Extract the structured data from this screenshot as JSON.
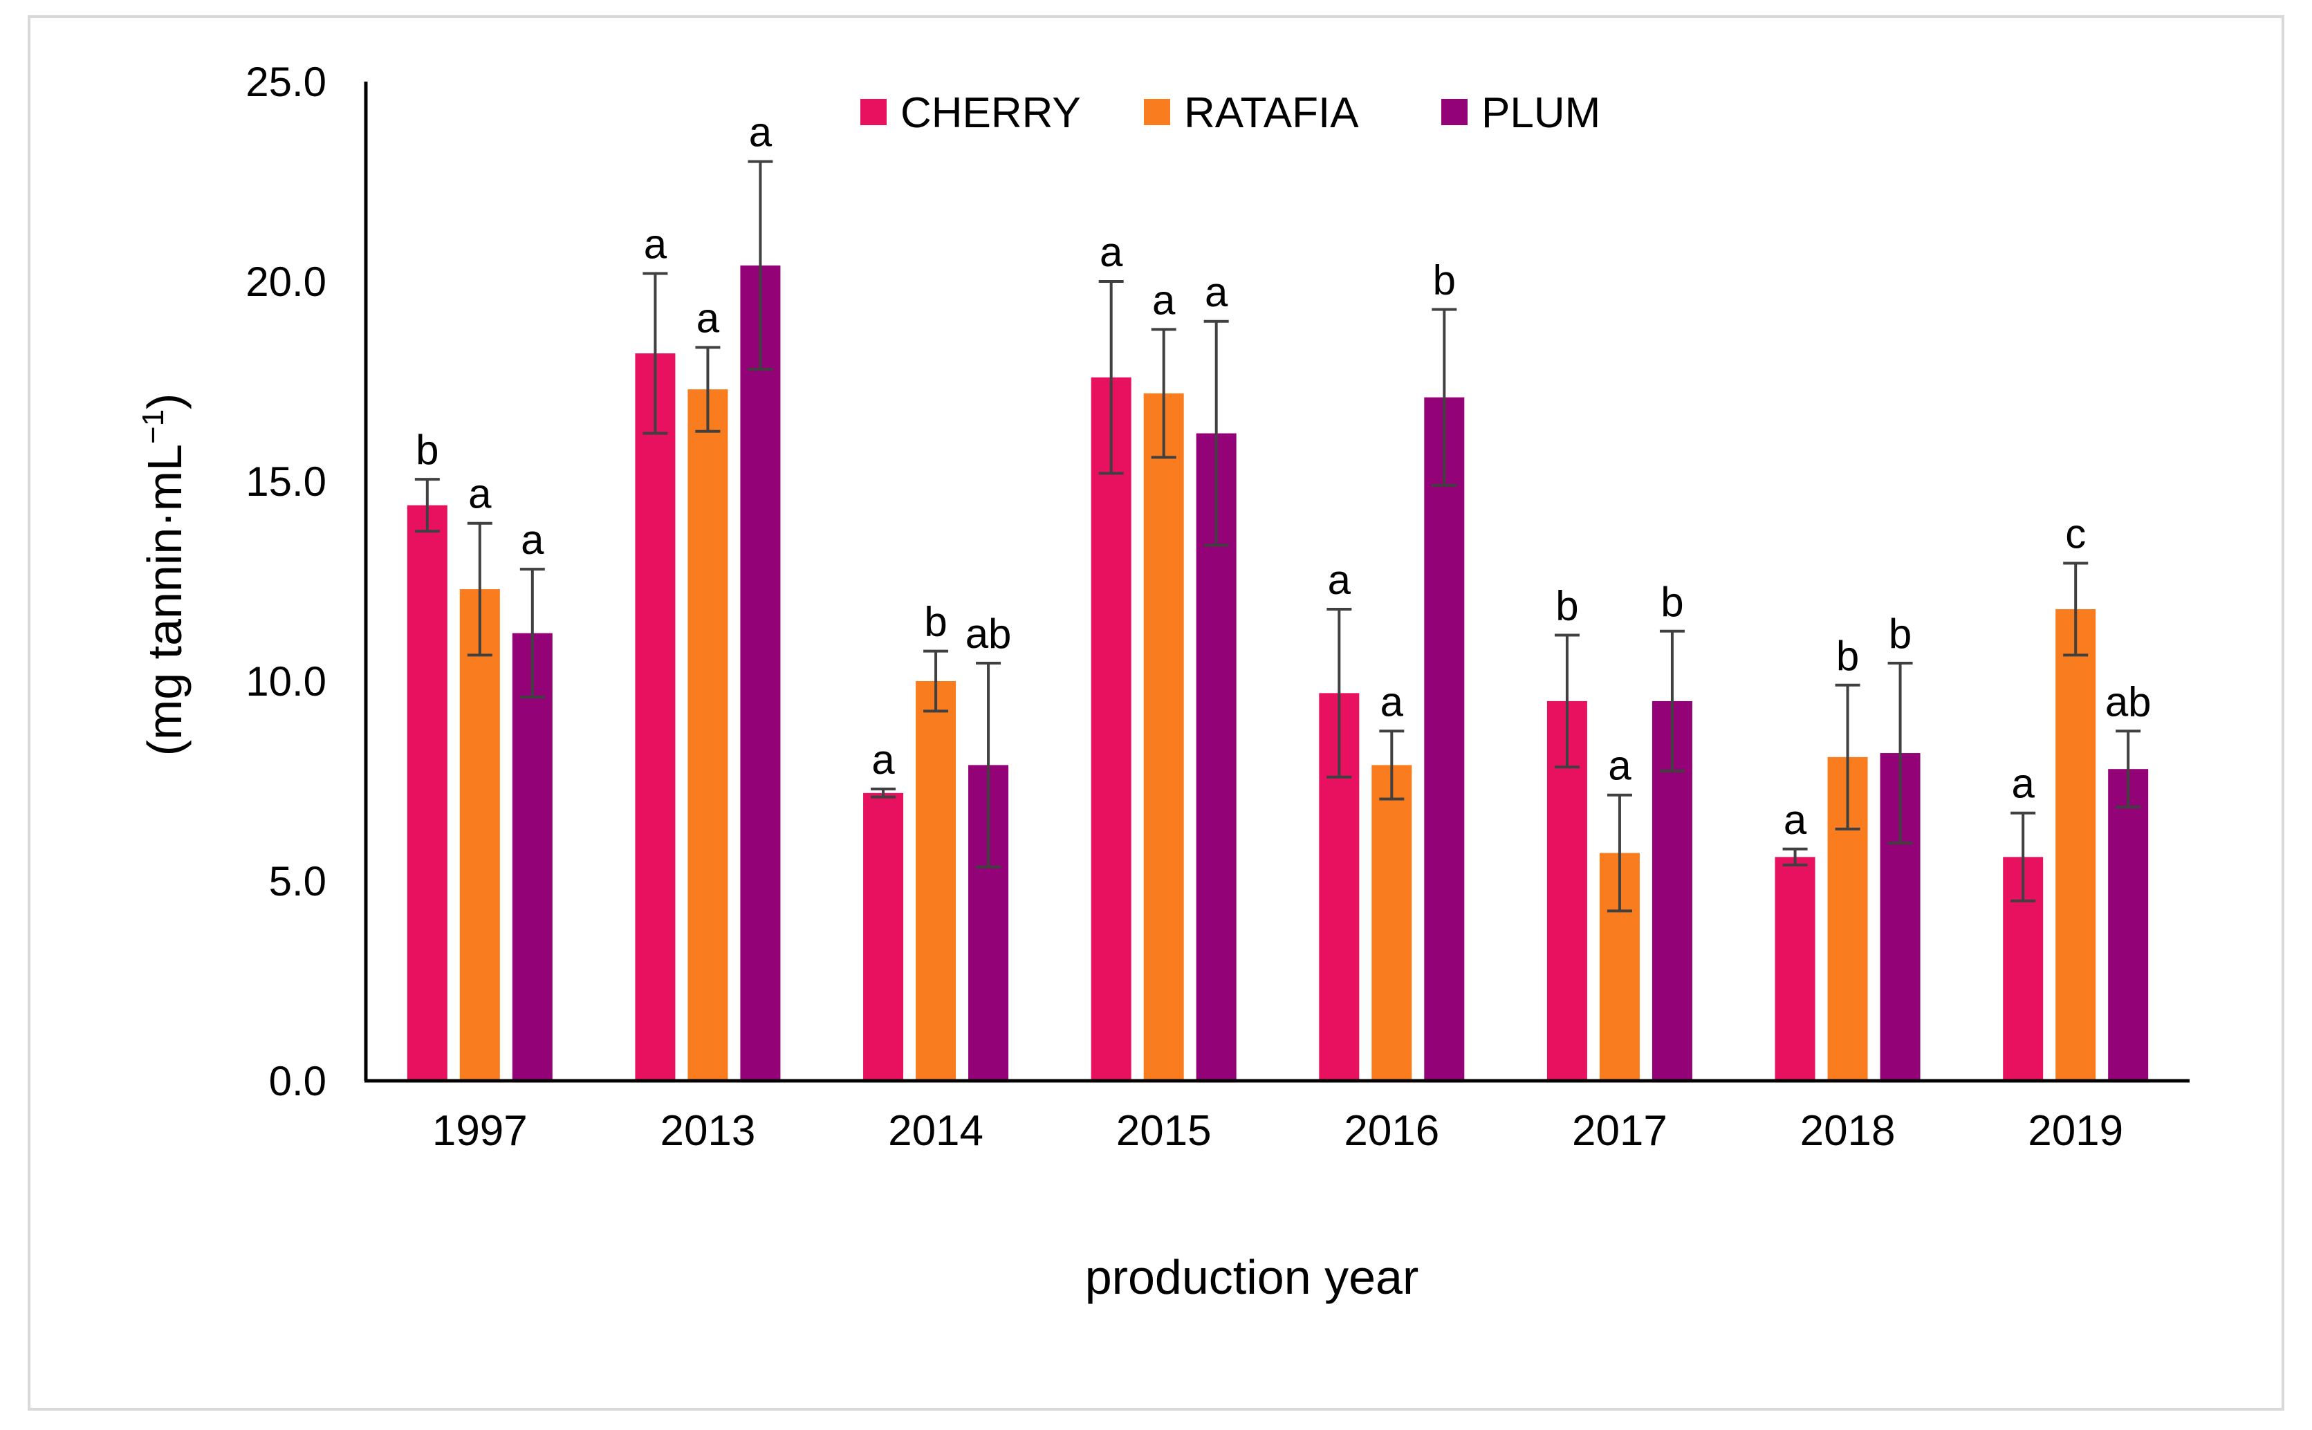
{
  "chart_data": {
    "type": "bar",
    "title": "",
    "xlabel": "production year",
    "ylabel_main": "(mg tannin·mL",
    "ylabel_sup": "−1",
    "ylabel_close": ")",
    "ylim": [
      0,
      25
    ],
    "yticks": [
      0,
      5,
      10,
      15,
      20,
      25
    ],
    "ytick_labels": [
      "0.0",
      "5.0",
      "10.0",
      "15.0",
      "20.0",
      "25.0"
    ],
    "grid": false,
    "legend_position": "top",
    "categories": [
      "1997",
      "2013",
      "2014",
      "2015",
      "2016",
      "2017",
      "2018",
      "2019"
    ],
    "series": [
      {
        "name": "CHERRY",
        "color": "#e8115f",
        "values": [
          14.4,
          18.2,
          7.2,
          17.6,
          9.7,
          9.5,
          5.6,
          5.6
        ],
        "errors": [
          0.65,
          2.0,
          0.1,
          2.4,
          2.1,
          1.65,
          0.2,
          1.1
        ],
        "labels": [
          "b",
          "a",
          "a",
          "a",
          "a",
          "b",
          "a",
          "a"
        ]
      },
      {
        "name": "RATAFIA",
        "color": "#f97c1e",
        "values": [
          12.3,
          17.3,
          10.0,
          17.2,
          7.9,
          5.7,
          8.1,
          11.8
        ],
        "errors": [
          1.65,
          1.05,
          0.75,
          1.6,
          0.85,
          1.45,
          1.8,
          1.15
        ],
        "labels": [
          "a",
          "a",
          "b",
          "a",
          "a",
          "a",
          "b",
          "c"
        ]
      },
      {
        "name": "PLUM",
        "color": "#930377",
        "values": [
          11.2,
          20.4,
          7.9,
          16.2,
          17.1,
          9.5,
          8.2,
          7.8
        ],
        "errors": [
          1.6,
          2.6,
          2.55,
          2.8,
          2.2,
          1.75,
          2.25,
          0.95
        ],
        "labels": [
          "a",
          "a",
          "ab",
          "a",
          "b",
          "b",
          "b",
          "ab"
        ]
      }
    ]
  }
}
